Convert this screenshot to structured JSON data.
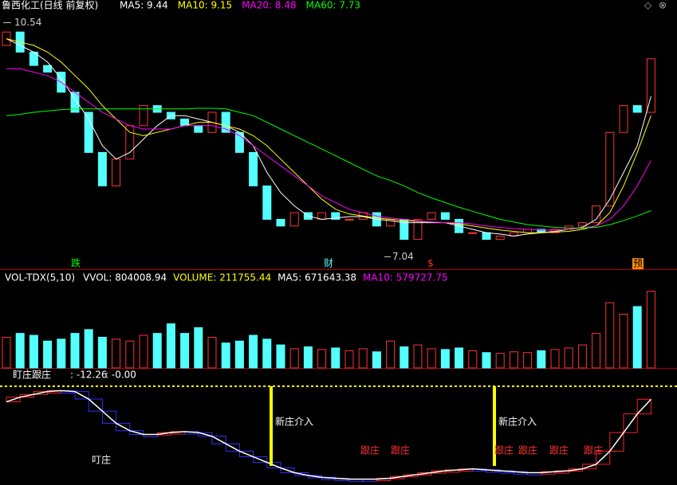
{
  "chart_data": [
    {
      "type": "candlestick",
      "title": "鲁西化工(日线 前复权)",
      "open": [
        10.2,
        10.4,
        10.1,
        9.9,
        9.8,
        9.5,
        9.2,
        8.6,
        8.1,
        8.5,
        9.0,
        9.3,
        9.2,
        9.1,
        9.0,
        8.9,
        9.2,
        8.9,
        8.6,
        8.1,
        7.6,
        7.5,
        7.7,
        7.6,
        7.7,
        7.6,
        7.6,
        7.7,
        7.5,
        7.6,
        7.3,
        7.6,
        7.7,
        7.6,
        7.4,
        7.4,
        7.3,
        7.35,
        7.4,
        7.45,
        7.4,
        7.45,
        7.5,
        7.55,
        7.8,
        8.9,
        9.3,
        9.2
      ],
      "close": [
        10.4,
        10.1,
        9.9,
        9.8,
        9.5,
        9.2,
        8.6,
        8.1,
        8.5,
        9.0,
        9.3,
        9.2,
        9.1,
        9.0,
        8.9,
        9.2,
        8.9,
        8.6,
        8.1,
        7.6,
        7.5,
        7.7,
        7.6,
        7.7,
        7.6,
        7.6,
        7.7,
        7.5,
        7.6,
        7.3,
        7.6,
        7.7,
        7.6,
        7.4,
        7.4,
        7.3,
        7.35,
        7.4,
        7.45,
        7.4,
        7.45,
        7.5,
        7.55,
        7.8,
        8.9,
        9.3,
        9.2,
        10.0
      ],
      "up_color": "#ff3232",
      "down_color": "#54ffff",
      "ylim": [
        6.95,
        10.7
      ],
      "high_label": 10.54,
      "low_label": 7.04,
      "series": [
        {
          "name": "MA5: 9.44",
          "color": "#ffffff",
          "values": [
            10.3,
            10.2,
            10.1,
            9.95,
            9.7,
            9.4,
            9.1,
            8.7,
            8.5,
            8.6,
            8.8,
            9.0,
            9.15,
            9.15,
            9.1,
            9.05,
            9.0,
            8.9,
            8.7,
            8.3,
            8.0,
            7.8,
            7.65,
            7.6,
            7.62,
            7.64,
            7.64,
            7.6,
            7.58,
            7.55,
            7.55,
            7.55,
            7.55,
            7.5,
            7.45,
            7.4,
            7.38,
            7.35,
            7.38,
            7.4,
            7.42,
            7.45,
            7.48,
            7.6,
            7.9,
            8.3,
            8.7,
            9.44
          ]
        },
        {
          "name": "MA10: 9.15",
          "color": "#ffff00",
          "values": [
            10.3,
            10.25,
            10.2,
            10.1,
            9.95,
            9.75,
            9.55,
            9.3,
            9.1,
            8.9,
            8.85,
            8.9,
            8.95,
            9.0,
            9.05,
            9.05,
            9.0,
            8.95,
            8.85,
            8.7,
            8.5,
            8.3,
            8.1,
            7.9,
            7.75,
            7.68,
            7.65,
            7.62,
            7.6,
            7.58,
            7.57,
            7.56,
            7.55,
            7.53,
            7.5,
            7.47,
            7.44,
            7.42,
            7.4,
            7.4,
            7.41,
            7.42,
            7.45,
            7.5,
            7.7,
            8.1,
            8.6,
            9.15
          ]
        },
        {
          "name": "MA20: 8.48",
          "color": "#ff00ff",
          "values": [
            9.85,
            9.85,
            9.8,
            9.75,
            9.65,
            9.5,
            9.35,
            9.2,
            9.1,
            9.0,
            8.95,
            8.95,
            8.95,
            9.0,
            9.0,
            9.0,
            8.95,
            8.85,
            8.7,
            8.55,
            8.4,
            8.25,
            8.1,
            7.95,
            7.85,
            7.75,
            7.7,
            7.65,
            7.62,
            7.6,
            7.58,
            7.56,
            7.55,
            7.55,
            7.53,
            7.5,
            7.48,
            7.46,
            7.45,
            7.44,
            7.44,
            7.45,
            7.47,
            7.5,
            7.6,
            7.8,
            8.1,
            8.48
          ]
        },
        {
          "name": "MA60: 7.73",
          "color": "#00ff00",
          "values": [
            9.15,
            9.17,
            9.2,
            9.22,
            9.24,
            9.25,
            9.25,
            9.25,
            9.25,
            9.25,
            9.25,
            9.25,
            9.25,
            9.25,
            9.26,
            9.26,
            9.25,
            9.2,
            9.15,
            9.05,
            8.95,
            8.85,
            8.75,
            8.65,
            8.55,
            8.45,
            8.35,
            8.25,
            8.18,
            8.1,
            8.0,
            7.92,
            7.85,
            7.78,
            7.72,
            7.66,
            7.6,
            7.56,
            7.52,
            7.5,
            7.48,
            7.47,
            7.47,
            7.48,
            7.52,
            7.58,
            7.65,
            7.73
          ]
        }
      ],
      "annotations": [
        "跌",
        "财",
        "$",
        "预"
      ]
    },
    {
      "type": "bar",
      "title": "VOL-TDX(5,10)",
      "legend": [
        {
          "text": "VVOL: 804008.94",
          "color": "#ffffff"
        },
        {
          "text": "VOLUME: 211755.44",
          "color": "#ffff00"
        },
        {
          "text": "MA5: 671643.38",
          "color": "#ffffff"
        },
        {
          "text": "MA10: 579727.75",
          "color": "#ff00ff"
        }
      ],
      "values": [
        800000,
        900000,
        850000,
        700000,
        750000,
        900000,
        1000000,
        800000,
        750000,
        700000,
        850000,
        900000,
        1150000,
        900000,
        1050000,
        800000,
        650000,
        700000,
        850000,
        750000,
        600000,
        500000,
        550000,
        480000,
        520000,
        450000,
        500000,
        420000,
        700000,
        550000,
        600000,
        500000,
        480000,
        520000,
        450000,
        400000,
        380000,
        420000,
        400000,
        450000,
        480000,
        520000,
        600000,
        900000,
        1700000,
        1400000,
        1600000,
        2000000
      ],
      "ylim": [
        0,
        2200000
      ]
    },
    {
      "type": "line",
      "title": "盯庄跟庄",
      "legend": [
        ": -12.26",
        ": -0.00"
      ],
      "values": [
        -15,
        -10,
        -7,
        -4,
        -3,
        -4,
        -12,
        -25,
        -38,
        -46,
        -50,
        -50,
        -48,
        -47,
        -48,
        -52,
        -60,
        -68,
        -74,
        -80,
        -86,
        -91,
        -94,
        -96,
        -97,
        -98,
        -98,
        -98,
        -97,
        -95,
        -93,
        -91,
        -89,
        -88,
        -87,
        -88,
        -89,
        -90,
        -91,
        -91,
        -90,
        -89,
        -87,
        -82,
        -68,
        -48,
        -28,
        -12.26
      ],
      "color": "#ffffff",
      "ylim": [
        -100,
        0
      ],
      "annotations": [
        "叮庄",
        "新庄介入",
        "新庄介入",
        "跟庄",
        "跟庄",
        "跟庄",
        "跟庄",
        "跟庄",
        "跟庄"
      ]
    }
  ]
}
